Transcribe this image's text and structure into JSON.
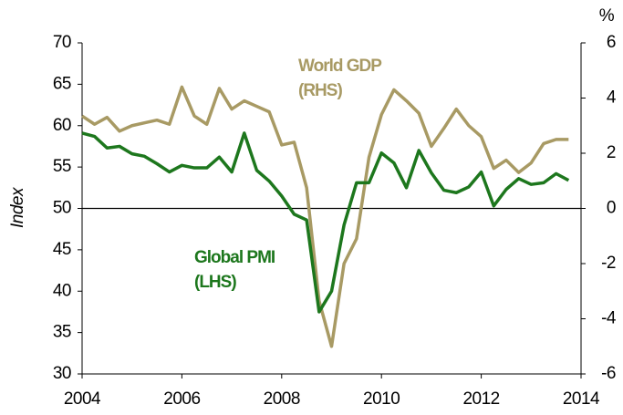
{
  "chart_data": {
    "type": "line",
    "y_label": "Index",
    "y2_label": "%",
    "x": [
      2004.0,
      2004.25,
      2004.5,
      2004.75,
      2005.0,
      2005.25,
      2005.5,
      2005.75,
      2006.0,
      2006.25,
      2006.5,
      2006.75,
      2007.0,
      2007.25,
      2007.5,
      2007.75,
      2008.0,
      2008.25,
      2008.5,
      2008.75,
      2009.0,
      2009.25,
      2009.5,
      2009.75,
      2010.0,
      2010.25,
      2010.5,
      2010.75,
      2011.0,
      2011.25,
      2011.5,
      2011.75,
      2012.0,
      2012.25,
      2012.5,
      2012.75,
      2013.0,
      2013.25,
      2013.5,
      2013.75
    ],
    "series": [
      {
        "name": "Global PMI (LHS)",
        "color": "#1d771d",
        "axis": "y",
        "values": [
          59.1,
          58.7,
          57.3,
          57.5,
          56.6,
          56.3,
          55.4,
          54.4,
          55.2,
          54.9,
          54.9,
          56.2,
          54.4,
          59.1,
          54.6,
          53.3,
          51.5,
          49.3,
          48.6,
          37.5,
          40.0,
          48.0,
          53.1,
          53.1,
          56.7,
          55.5,
          52.5,
          57.0,
          54.3,
          52.2,
          51.9,
          52.6,
          54.4,
          50.3,
          52.3,
          53.6,
          52.9,
          53.1,
          54.2,
          53.4
        ]
      },
      {
        "name": "World GDP (RHS)",
        "color": "#a89a64",
        "axis": "y2",
        "values": [
          3.35,
          3.05,
          3.3,
          2.8,
          3.0,
          3.1,
          3.2,
          3.05,
          4.4,
          3.35,
          3.05,
          4.35,
          3.6,
          3.9,
          3.7,
          3.5,
          2.3,
          2.4,
          0.75,
          -3.35,
          -5.0,
          -2.0,
          -1.1,
          1.85,
          3.4,
          4.3,
          3.9,
          3.45,
          2.25,
          2.9,
          3.6,
          3.0,
          2.6,
          1.45,
          1.75,
          1.3,
          1.65,
          2.35,
          2.5,
          2.5
        ]
      }
    ],
    "annotations": [
      {
        "series": 1,
        "lines": [
          "World GDP",
          "(RHS)"
        ]
      },
      {
        "series": 0,
        "lines": [
          "Global PMI",
          "(LHS)"
        ]
      }
    ],
    "xlim": [
      2004,
      2014
    ],
    "xticks": [
      2004,
      2006,
      2008,
      2010,
      2012,
      2014
    ],
    "ylim": [
      30,
      70
    ],
    "yticks": [
      30,
      35,
      40,
      45,
      50,
      55,
      60,
      65,
      70
    ],
    "y2lim": [
      -6,
      6
    ],
    "y2ticks": [
      -6,
      -4,
      -2,
      0,
      2,
      4,
      6
    ],
    "reference_line": 50,
    "grid": false
  }
}
